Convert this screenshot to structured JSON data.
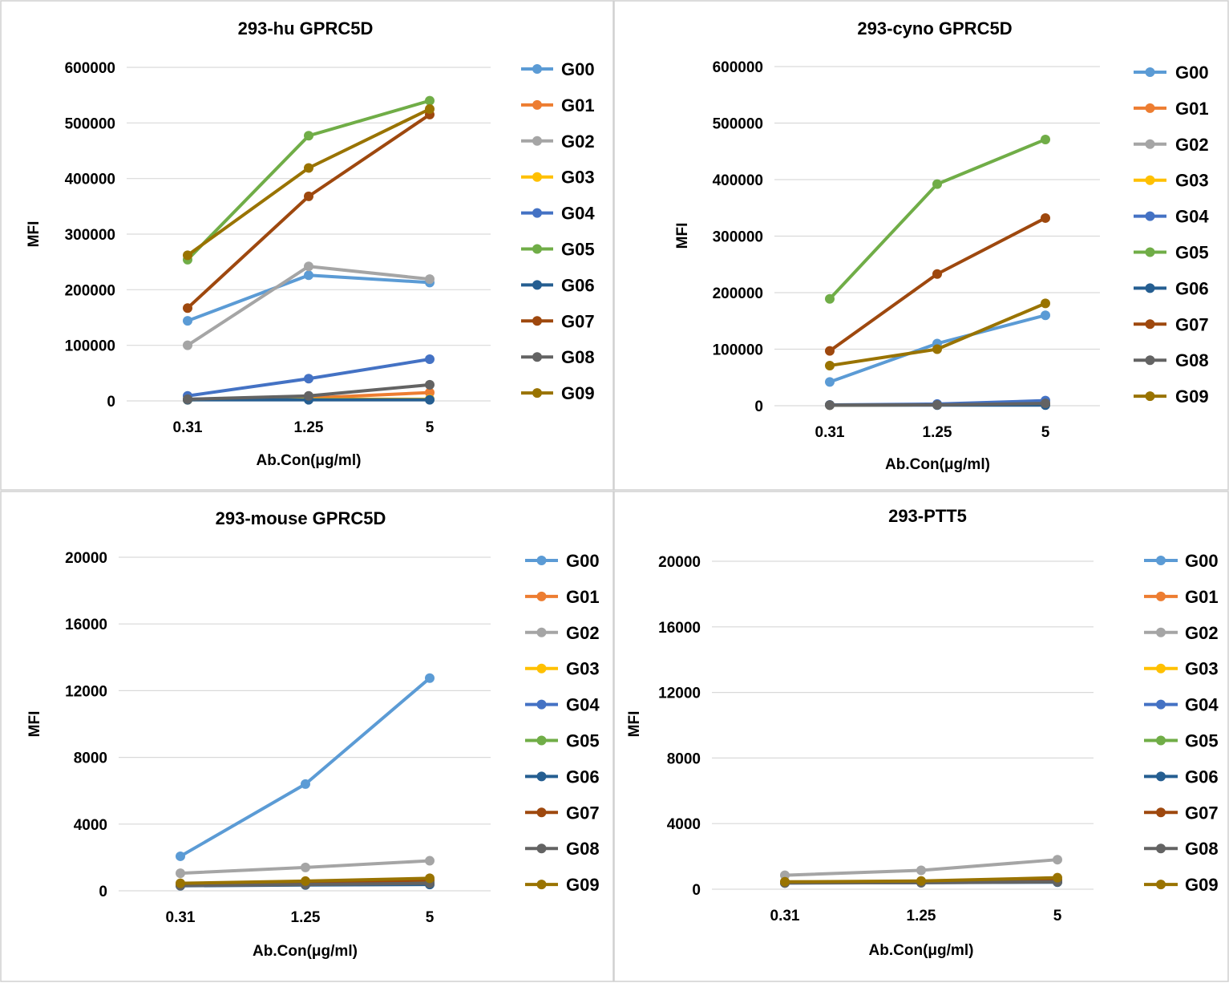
{
  "chart_data": [
    {
      "type": "line",
      "title": "293-hu GPRC5D",
      "xlabel": "Ab.Con(μg/ml)",
      "ylabel": "MFI",
      "categories": [
        "0.31",
        "1.25",
        "5"
      ],
      "ylim": [
        0,
        600000
      ],
      "yticks": [
        0,
        100000,
        200000,
        300000,
        400000,
        500000,
        600000
      ],
      "yticklabels": [
        "0",
        "100000",
        "200000",
        "300000",
        "400000",
        "500000",
        "600000"
      ],
      "grid": true,
      "legend_position": "right",
      "series": [
        {
          "name": "G00",
          "color": "#5B9BD5",
          "values": [
            144000,
            226000,
            213000
          ]
        },
        {
          "name": "G01",
          "color": "#ED7D31",
          "values": [
            2000,
            5000,
            15000
          ]
        },
        {
          "name": "G02",
          "color": "#A5A5A5",
          "values": [
            100000,
            242000,
            219000
          ]
        },
        {
          "name": "G03",
          "color": "#FFC000",
          "values": [
            2000,
            3000,
            3000
          ]
        },
        {
          "name": "G04",
          "color": "#4472C4",
          "values": [
            9000,
            40000,
            75000
          ]
        },
        {
          "name": "G05",
          "color": "#70AD47",
          "values": [
            254000,
            477000,
            540000
          ]
        },
        {
          "name": "G06",
          "color": "#255E91",
          "values": [
            2000,
            2000,
            2000
          ]
        },
        {
          "name": "G07",
          "color": "#9E480E",
          "values": [
            167000,
            368000,
            515000
          ]
        },
        {
          "name": "G08",
          "color": "#636363",
          "values": [
            3000,
            9000,
            29000
          ]
        },
        {
          "name": "G09",
          "color": "#997300",
          "values": [
            262000,
            419000,
            525000
          ]
        }
      ]
    },
    {
      "type": "line",
      "title": "293-cyno GPRC5D",
      "xlabel": "Ab.Con(μg/ml)",
      "ylabel": "MFI",
      "categories": [
        "0.31",
        "1.25",
        "5"
      ],
      "ylim": [
        0,
        600000
      ],
      "yticks": [
        0,
        100000,
        200000,
        300000,
        400000,
        500000,
        600000
      ],
      "yticklabels": [
        "0",
        "100000",
        "200000",
        "300000",
        "400000",
        "500000",
        "600000"
      ],
      "grid": true,
      "legend_position": "right",
      "series": [
        {
          "name": "G00",
          "color": "#5B9BD5",
          "values": [
            42000,
            110000,
            160000
          ]
        },
        {
          "name": "G01",
          "color": "#ED7D31",
          "values": [
            1000,
            1500,
            2000
          ]
        },
        {
          "name": "G02",
          "color": "#A5A5A5",
          "values": [
            1000,
            2000,
            3000
          ]
        },
        {
          "name": "G03",
          "color": "#FFC000",
          "values": [
            1000,
            1500,
            2000
          ]
        },
        {
          "name": "G04",
          "color": "#4472C4",
          "values": [
            1500,
            3000,
            9000
          ]
        },
        {
          "name": "G05",
          "color": "#70AD47",
          "values": [
            189000,
            392000,
            471000
          ]
        },
        {
          "name": "G06",
          "color": "#255E91",
          "values": [
            1000,
            1000,
            1000
          ]
        },
        {
          "name": "G07",
          "color": "#9E480E",
          "values": [
            97000,
            233000,
            332000
          ]
        },
        {
          "name": "G08",
          "color": "#636363",
          "values": [
            1000,
            1500,
            4000
          ]
        },
        {
          "name": "G09",
          "color": "#997300",
          "values": [
            71000,
            100000,
            181000
          ]
        }
      ]
    },
    {
      "type": "line",
      "title": "293-mouse GPRC5D",
      "xlabel": "Ab.Con(μg/ml)",
      "ylabel": "MFI",
      "categories": [
        "0.31",
        "1.25",
        "5"
      ],
      "ylim": [
        0,
        20000
      ],
      "yticks": [
        0,
        4000,
        8000,
        12000,
        16000,
        20000
      ],
      "yticklabels": [
        "0",
        "4000",
        "8000",
        "12000",
        "16000",
        "20000"
      ],
      "grid": true,
      "legend_position": "right",
      "series": [
        {
          "name": "G00",
          "color": "#5B9BD5",
          "values": [
            2070,
            6400,
            12750
          ]
        },
        {
          "name": "G01",
          "color": "#ED7D31",
          "values": [
            350,
            450,
            550
          ]
        },
        {
          "name": "G02",
          "color": "#A5A5A5",
          "values": [
            1050,
            1400,
            1800
          ]
        },
        {
          "name": "G03",
          "color": "#FFC000",
          "values": [
            350,
            400,
            500
          ]
        },
        {
          "name": "G04",
          "color": "#4472C4",
          "values": [
            330,
            380,
            450
          ]
        },
        {
          "name": "G05",
          "color": "#70AD47",
          "values": [
            350,
            420,
            500
          ]
        },
        {
          "name": "G06",
          "color": "#255E91",
          "values": [
            300,
            350,
            380
          ]
        },
        {
          "name": "G07",
          "color": "#9E480E",
          "values": [
            400,
            500,
            650
          ]
        },
        {
          "name": "G08",
          "color": "#636363",
          "values": [
            320,
            380,
            450
          ]
        },
        {
          "name": "G09",
          "color": "#997300",
          "values": [
            450,
            580,
            750
          ]
        }
      ]
    },
    {
      "type": "line",
      "title": "293-PTT5",
      "xlabel": "Ab.Con(μg/ml)",
      "ylabel": "MFI",
      "categories": [
        "0.31",
        "1.25",
        "5"
      ],
      "ylim": [
        0,
        20000
      ],
      "yticks": [
        0,
        4000,
        8000,
        12000,
        16000,
        20000
      ],
      "yticklabels": [
        "0",
        "4000",
        "8000",
        "12000",
        "16000",
        "20000"
      ],
      "grid": true,
      "legend_position": "right",
      "series": [
        {
          "name": "G00",
          "color": "#5B9BD5",
          "values": [
            400,
            420,
            500
          ]
        },
        {
          "name": "G01",
          "color": "#ED7D31",
          "values": [
            400,
            420,
            480
          ]
        },
        {
          "name": "G02",
          "color": "#A5A5A5",
          "values": [
            850,
            1150,
            1800
          ]
        },
        {
          "name": "G03",
          "color": "#FFC000",
          "values": [
            400,
            420,
            500
          ]
        },
        {
          "name": "G04",
          "color": "#4472C4",
          "values": [
            400,
            410,
            450
          ]
        },
        {
          "name": "G05",
          "color": "#70AD47",
          "values": [
            400,
            420,
            480
          ]
        },
        {
          "name": "G06",
          "color": "#255E91",
          "values": [
            380,
            400,
            430
          ]
        },
        {
          "name": "G07",
          "color": "#9E480E",
          "values": [
            420,
            450,
            550
          ]
        },
        {
          "name": "G08",
          "color": "#636363",
          "values": [
            380,
            400,
            450
          ]
        },
        {
          "name": "G09",
          "color": "#997300",
          "values": [
            450,
            500,
            700
          ]
        }
      ]
    }
  ]
}
